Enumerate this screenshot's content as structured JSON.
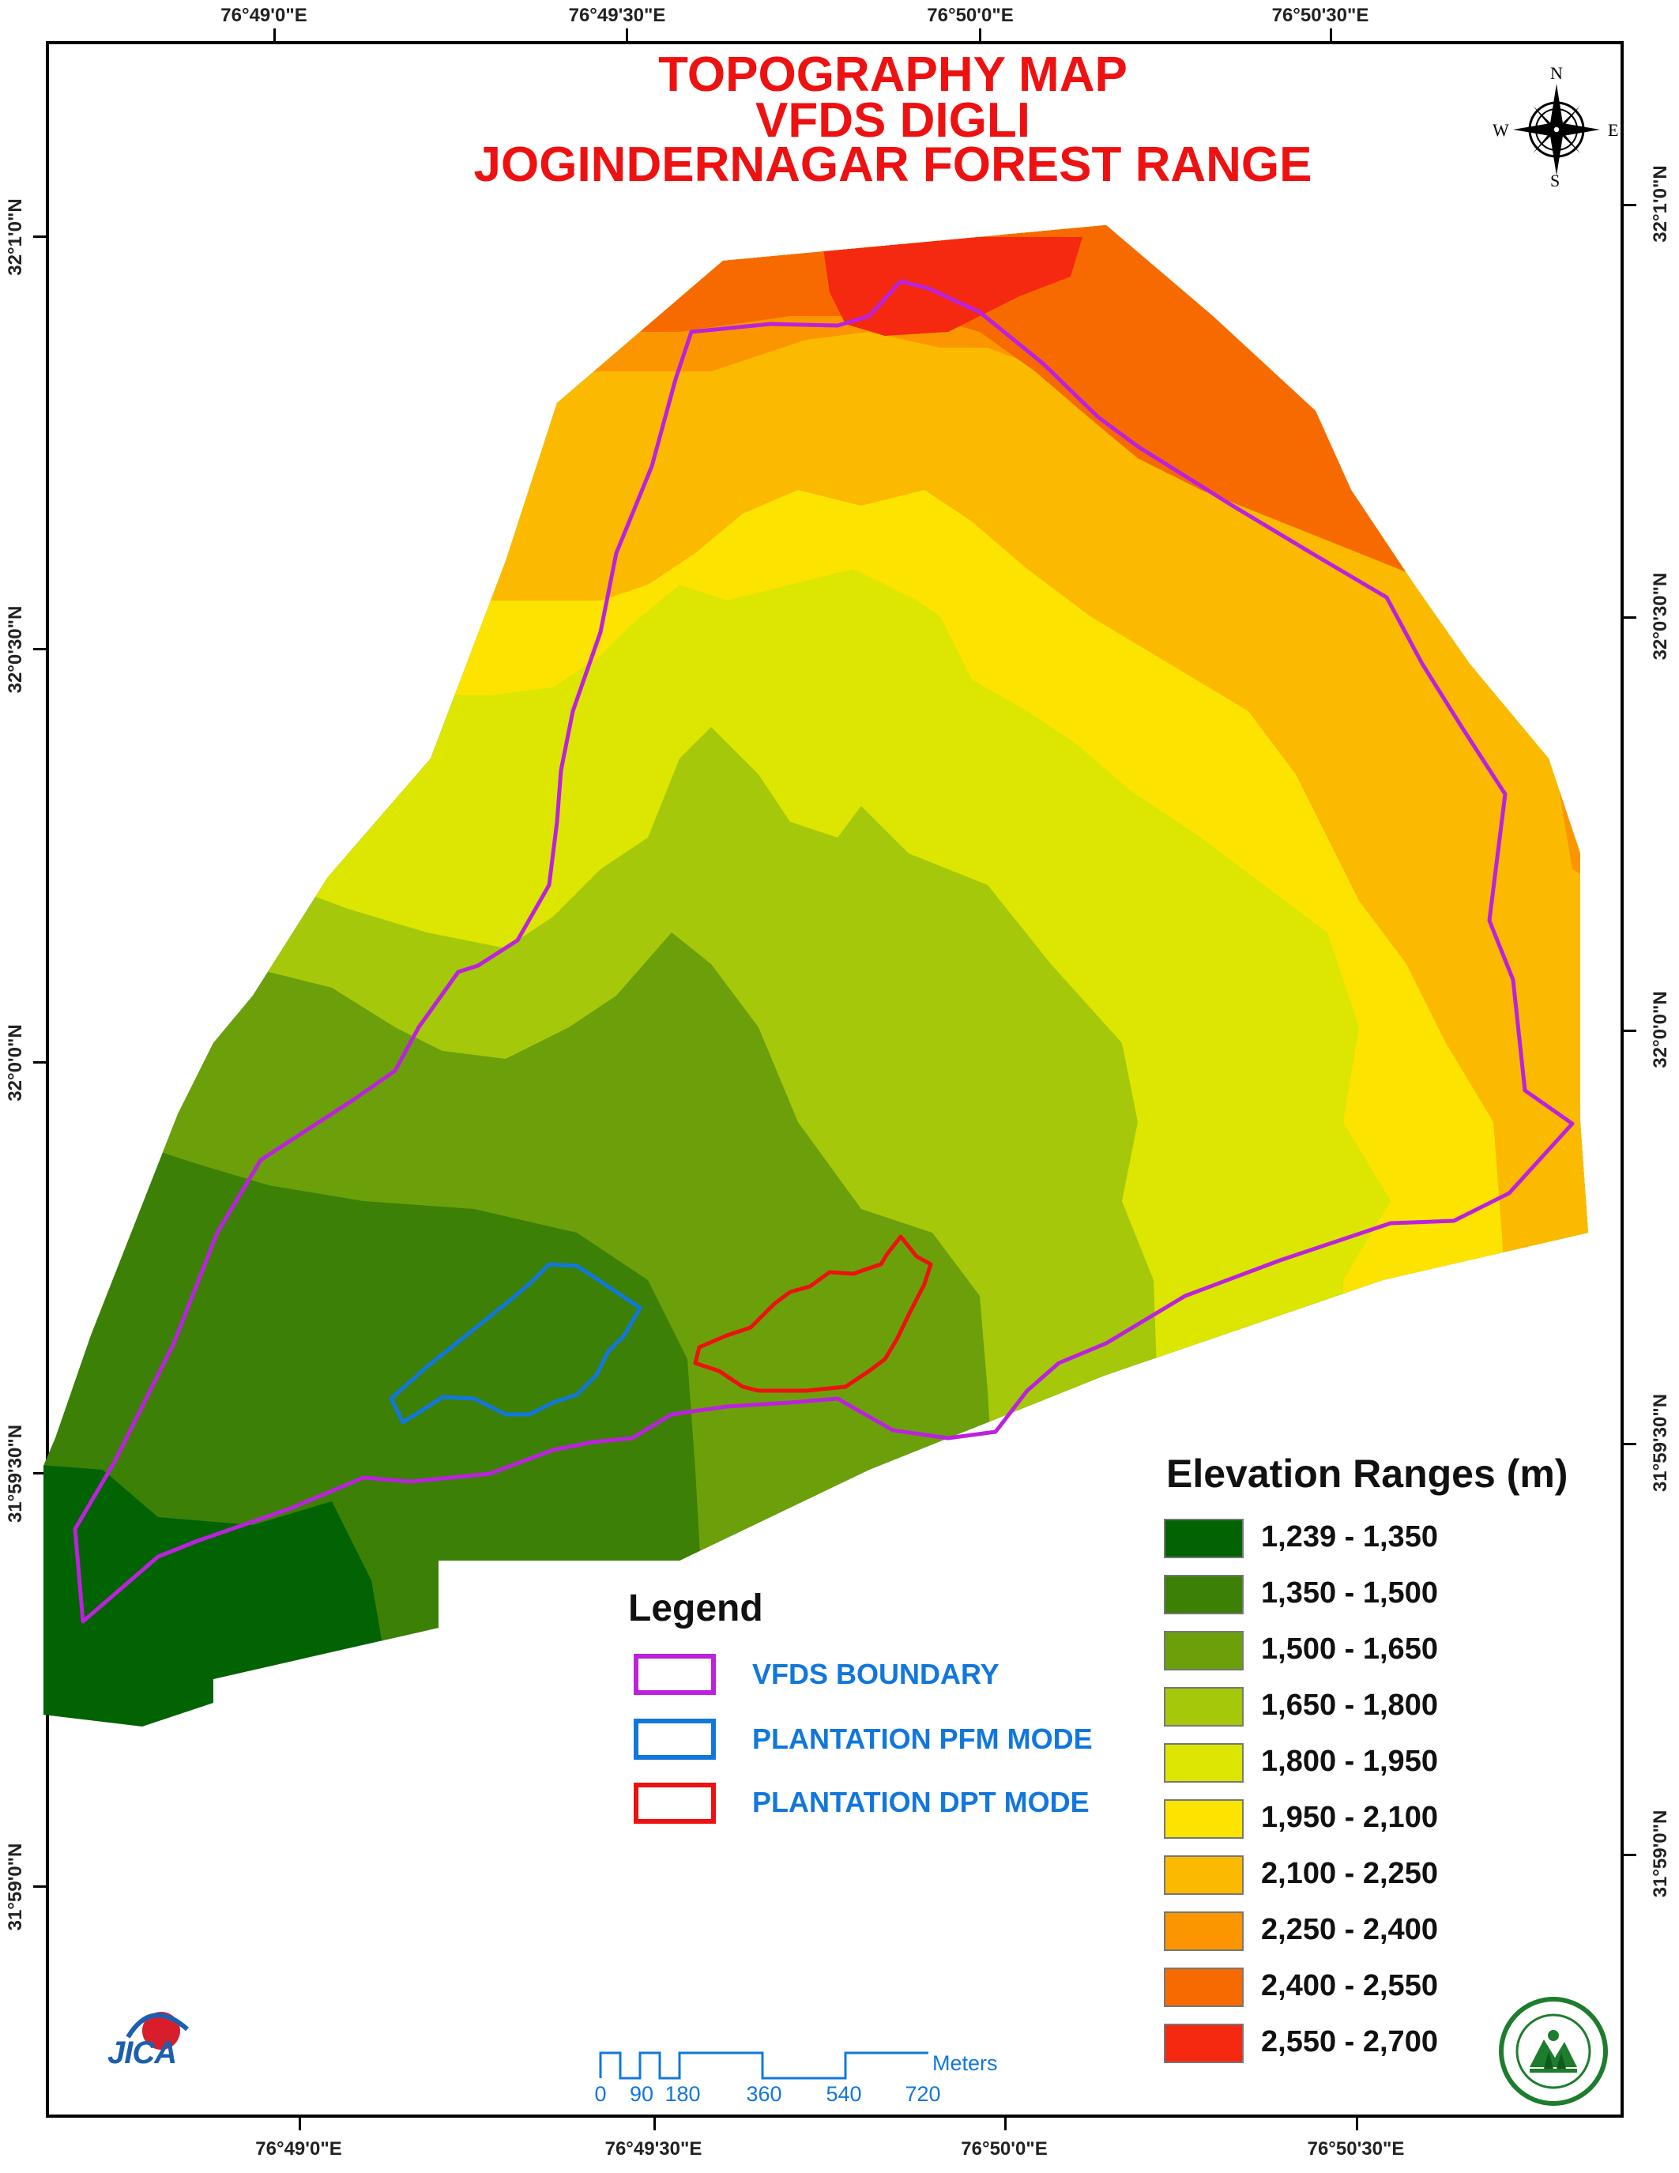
{
  "map": {
    "title_lines": [
      "TOPOGRAPHY MAP",
      "VFDS DIGLI",
      "JOGINDERNAGAR FOREST RANGE"
    ],
    "longitude_labels": [
      "76°49'0\"E",
      "76°49'30\"E",
      "76°50'0\"E",
      "76°50'30\"E"
    ],
    "latitude_labels": [
      "32°1'0\"N",
      "32°0'30\"N",
      "32°0'0\"N",
      "31°59'30\"N",
      "31°59'0\"N"
    ],
    "compass": {
      "n": "N",
      "s": "S",
      "e": "E",
      "w": "W",
      "icon": "compass-rose-icon"
    }
  },
  "legend": {
    "title": "Legend",
    "items": [
      {
        "label": "VFDS BOUNDARY",
        "color": "#bb22dd"
      },
      {
        "label": "PLANTATION PFM MODE",
        "color": "#1177dd"
      },
      {
        "label": "PLANTATION DPT MODE",
        "color": "#ee1111"
      }
    ]
  },
  "elevation": {
    "title": "Elevation Ranges (m)",
    "classes": [
      {
        "range": "1,239 - 1,350",
        "color": "#026302"
      },
      {
        "range": "1,350 - 1,500",
        "color": "#3c8005"
      },
      {
        "range": "1,500 - 1,650",
        "color": "#6ca00a"
      },
      {
        "range": "1,650 - 1,800",
        "color": "#a6c80a"
      },
      {
        "range": "1,800 - 1,950",
        "color": "#dce600"
      },
      {
        "range": "1,950 - 2,100",
        "color": "#fce300"
      },
      {
        "range": "2,100 - 2,250",
        "color": "#fbb900"
      },
      {
        "range": "2,250 - 2,400",
        "color": "#fb9600"
      },
      {
        "range": "2,400 - 2,550",
        "color": "#f76a00"
      },
      {
        "range": "2,550 - 2,700",
        "color": "#f52810"
      }
    ]
  },
  "scale_bar": {
    "labels": [
      "0",
      "90",
      "180",
      "360",
      "540",
      "720"
    ],
    "unit": "Meters"
  },
  "logos": {
    "jica": "JICA",
    "forest_dept_icon": "forest-department-emblem-icon"
  }
}
